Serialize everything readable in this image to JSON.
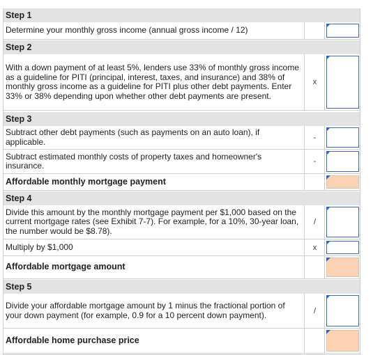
{
  "steps": [
    {
      "heading": "Step 1"
    },
    {
      "heading": "Step 2"
    },
    {
      "heading": "Step 3"
    },
    {
      "heading": "Step 4"
    },
    {
      "heading": "Step 5"
    }
  ],
  "rows": {
    "r1": {
      "text": "Determine your monthly gross income (annual gross income / 12)",
      "op": ""
    },
    "r2": {
      "text": "With a down payment of at least 5%, lenders use 33% of monthly gross income as a guideline for PITI (principal, interest, taxes, and insurance) and 38% of monthly gross income as a guideline for PITI plus other debt payments. Enter 33% or 38% depending upon whether other debt payments are present.",
      "op": "x"
    },
    "r3": {
      "text": "Subtract other debt payments (such as payments on an auto loan), if applicable.",
      "op": "-"
    },
    "r4": {
      "text": "Subtract estimated monthly costs of property taxes and homeowner's insurance.",
      "op": "-"
    },
    "r5": {
      "text": "Affordable monthly mortgage payment",
      "op": ""
    },
    "r6": {
      "text": "Divide this amount by the monthly mortgage payment per $1,000 based on the current mortgage rates (see Exhibit 7-7). For example, for a 10%, 30-year loan, the number would be $8.78).",
      "op": "/"
    },
    "r7": {
      "text": "Multiply by $1,000",
      "op": "x"
    },
    "r8": {
      "text": "Affordable mortgage amount",
      "op": ""
    },
    "r9": {
      "text": "Divide your affordable mortgage amount by 1 minus the fractional portion of your down payment (for example, 0.9 for a 10 percent down payment).",
      "op": "/"
    },
    "r10": {
      "text": "Affordable home purchase price",
      "op": ""
    }
  },
  "colors": {
    "input_border": "#3a6fb5",
    "result_fill": "#fbd3b4",
    "step_header_bg": "#e3e3e3"
  }
}
